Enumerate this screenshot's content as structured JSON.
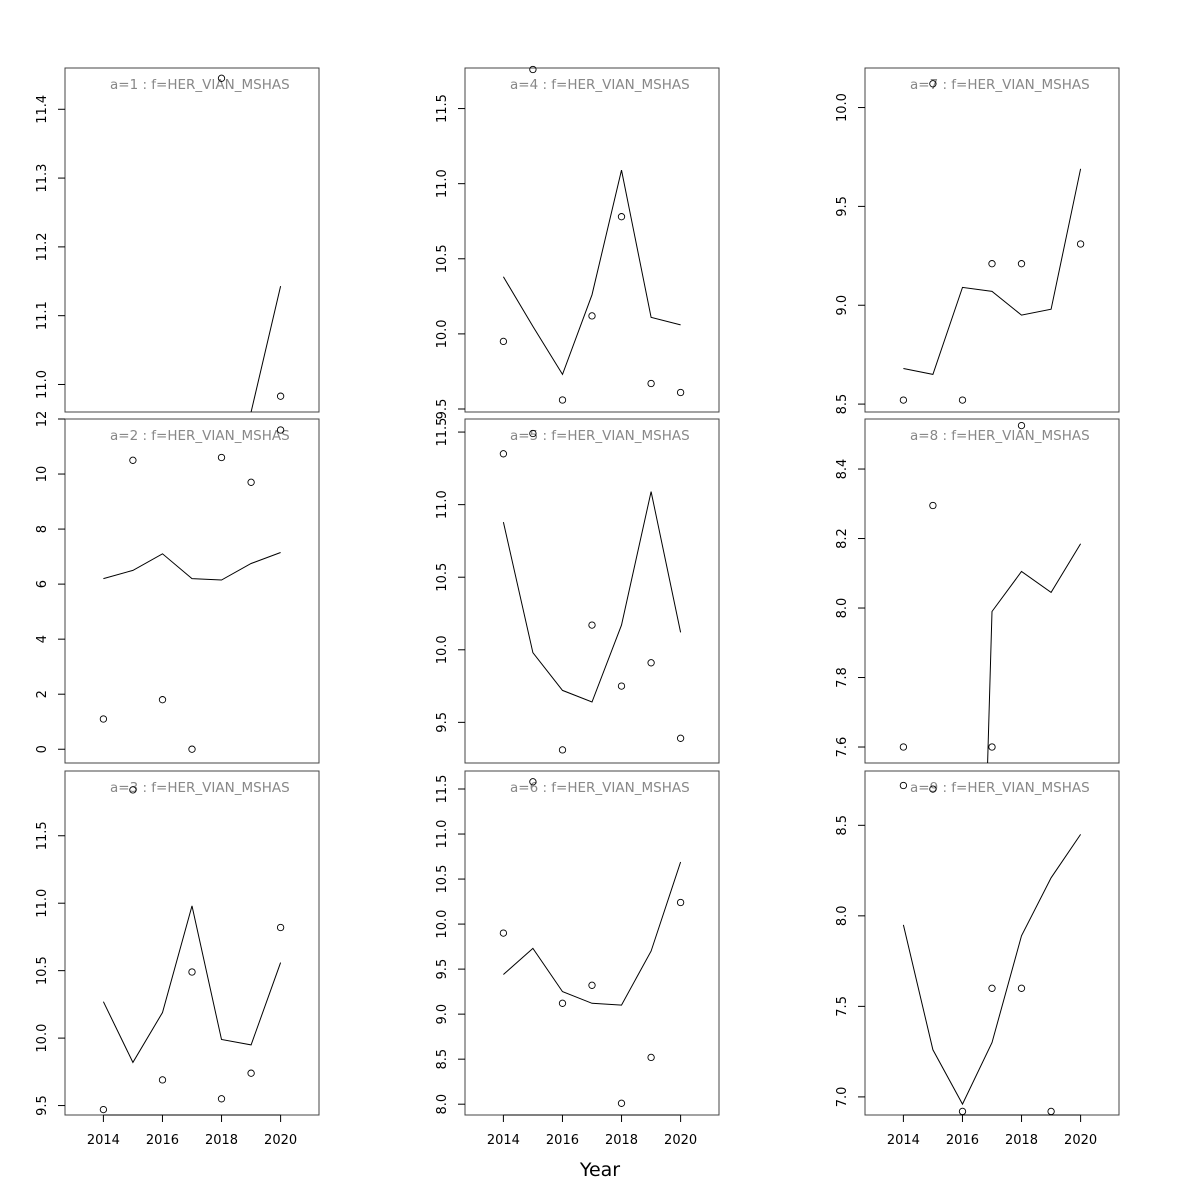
{
  "figure": {
    "xlabel": "Year",
    "x_ticks": [
      2014,
      2016,
      2018,
      2020
    ],
    "xlim": [
      2012.7,
      2021.3
    ]
  },
  "chart_data": [
    {
      "type": "line+scatter",
      "title": "a=1 : f=HER_VIAN_MSHAS",
      "ylim": [
        10.96,
        11.46
      ],
      "y_ticks": [
        "11.0",
        "11.1",
        "11.2",
        "11.3",
        "11.4"
      ],
      "x": [
        2014,
        2015,
        2016,
        2017,
        2018,
        2019,
        2020
      ],
      "line": [
        null,
        null,
        null,
        null,
        null,
        10.96,
        11.143
      ],
      "points": [
        null,
        null,
        null,
        null,
        11.445,
        null,
        10.983
      ]
    },
    {
      "type": "line+scatter",
      "title": "a=2 : f=HER_VIAN_MSHAS",
      "ylim": [
        -0.5,
        12
      ],
      "y_ticks": [
        "0",
        "2",
        "4",
        "6",
        "8",
        "10",
        "12"
      ],
      "x": [
        2014,
        2015,
        2016,
        2017,
        2018,
        2019,
        2020
      ],
      "line": [
        6.2,
        6.5,
        7.1,
        6.2,
        6.15,
        6.75,
        7.15
      ],
      "points": [
        1.1,
        10.5,
        1.8,
        0.0,
        10.6,
        9.7,
        11.6
      ]
    },
    {
      "type": "line+scatter",
      "title": "a=3 : f=HER_VIAN_MSHAS",
      "ylim": [
        9.43,
        11.98
      ],
      "y_ticks": [
        "9.5",
        "10.0",
        "10.5",
        "11.0",
        "11.5"
      ],
      "x": [
        2014,
        2015,
        2016,
        2017,
        2018,
        2019,
        2020
      ],
      "line": [
        10.27,
        9.82,
        10.19,
        10.98,
        9.99,
        9.95,
        10.56
      ],
      "points": [
        9.47,
        11.84,
        9.69,
        10.49,
        9.55,
        9.74,
        10.82
      ]
    },
    {
      "type": "line+scatter",
      "title": "a=4 : f=HER_VIAN_MSHAS",
      "ylim": [
        9.48,
        11.77
      ],
      "y_ticks": [
        "9.5",
        "10.0",
        "10.5",
        "11.0",
        "11.5"
      ],
      "x": [
        2014,
        2015,
        2016,
        2017,
        2018,
        2019,
        2020
      ],
      "line": [
        10.38,
        10.05,
        9.73,
        10.26,
        11.09,
        10.11,
        10.06
      ],
      "points": [
        9.95,
        11.76,
        9.56,
        10.12,
        10.78,
        9.67,
        9.61
      ]
    },
    {
      "type": "line+scatter",
      "title": "a=5 : f=HER_VIAN_MSHAS",
      "ylim": [
        9.22,
        11.59
      ],
      "y_ticks": [
        "9.5",
        "10.0",
        "10.5",
        "11.0",
        "11.5"
      ],
      "x": [
        2014,
        2015,
        2016,
        2017,
        2018,
        2019,
        2020
      ],
      "line": [
        10.88,
        9.98,
        9.72,
        9.64,
        10.17,
        11.09,
        10.12
      ],
      "points": [
        11.35,
        11.49,
        9.31,
        10.17,
        9.75,
        9.91,
        9.39
      ]
    },
    {
      "type": "line+scatter",
      "title": "a=6 : f=HER_VIAN_MSHAS",
      "ylim": [
        7.88,
        11.7
      ],
      "y_ticks": [
        "8.0",
        "8.5",
        "9.0",
        "9.5",
        "10.0",
        "10.5",
        "11.0",
        "11.5"
      ],
      "x": [
        2014,
        2015,
        2016,
        2017,
        2018,
        2019,
        2020
      ],
      "line": [
        9.44,
        9.73,
        9.25,
        9.12,
        9.1,
        9.7,
        10.69
      ],
      "points": [
        9.9,
        11.58,
        9.12,
        9.32,
        8.01,
        8.52,
        10.24
      ]
    },
    {
      "type": "line+scatter",
      "title": "a=7 : f=HER_VIAN_MSHAS",
      "ylim": [
        8.46,
        10.2
      ],
      "y_ticks": [
        "8.5",
        "9.0",
        "9.5",
        "10.0"
      ],
      "x": [
        2014,
        2015,
        2016,
        2017,
        2018,
        2019,
        2020
      ],
      "line": [
        8.68,
        8.65,
        9.09,
        9.07,
        8.95,
        8.98,
        9.69
      ],
      "points": [
        8.52,
        10.12,
        8.52,
        9.21,
        9.21,
        null,
        9.31
      ]
    },
    {
      "type": "line+scatter",
      "title": "a=8 : f=HER_VIAN_MSHAS",
      "ylim": [
        7.554,
        8.544
      ],
      "y_ticks": [
        "7.6",
        "7.8",
        "8.0",
        "8.2",
        "8.4"
      ],
      "x": [
        2014,
        2015,
        2016,
        2017,
        2018,
        2019,
        2020
      ],
      "line": [
        null,
        null,
        7.554,
        7.99,
        8.105,
        8.045,
        8.185
      ],
      "line_start_x": 2016.85,
      "points": [
        7.6,
        8.295,
        null,
        7.6,
        8.525,
        null,
        null
      ]
    },
    {
      "type": "line+scatter",
      "title": "a=9 : f=HER_VIAN_MSHAS",
      "ylim": [
        6.9,
        8.8
      ],
      "y_ticks": [
        "7.0",
        "7.5",
        "8.0",
        "8.5"
      ],
      "x": [
        2014,
        2015,
        2016,
        2017,
        2018,
        2019,
        2020
      ],
      "line": [
        7.95,
        7.26,
        6.96,
        7.3,
        7.89,
        8.21,
        8.45
      ],
      "points": [
        8.72,
        8.7,
        6.92,
        7.6,
        7.6,
        6.92,
        null
      ]
    }
  ]
}
